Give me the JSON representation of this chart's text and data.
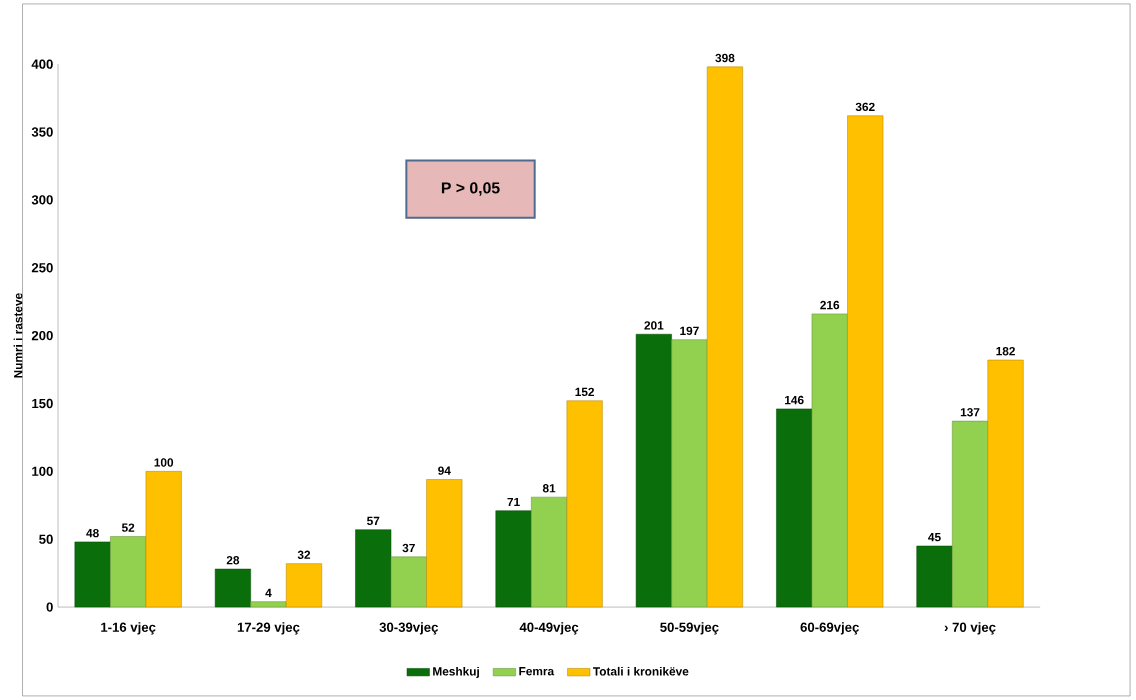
{
  "chart_data": {
    "type": "bar",
    "ylabel": "Numri i rasteve",
    "categories": [
      "1-16 vjeç",
      "17-29 vjeç",
      "30-39vjeç",
      "40-49vjeç",
      "50-59vjeç",
      "60-69vjeç",
      "› 70 vjeç"
    ],
    "series": [
      {
        "name": "Meshkuj",
        "color": "#0a6e0a",
        "values": [
          48,
          28,
          57,
          71,
          201,
          146,
          45
        ]
      },
      {
        "name": "Femra",
        "color": "#92d050",
        "values": [
          52,
          4,
          37,
          81,
          197,
          216,
          137
        ]
      },
      {
        "name": "Totali i kronikëve",
        "color": "#ffc000",
        "values": [
          100,
          32,
          94,
          152,
          398,
          362,
          182
        ]
      }
    ],
    "ylim": [
      0,
      400
    ],
    "yticks": [
      0,
      50,
      100,
      150,
      200,
      250,
      300,
      350,
      400
    ],
    "annotations": [
      "P > 0,05"
    ],
    "data_labels": true,
    "grid": false,
    "legend": "bottom"
  }
}
